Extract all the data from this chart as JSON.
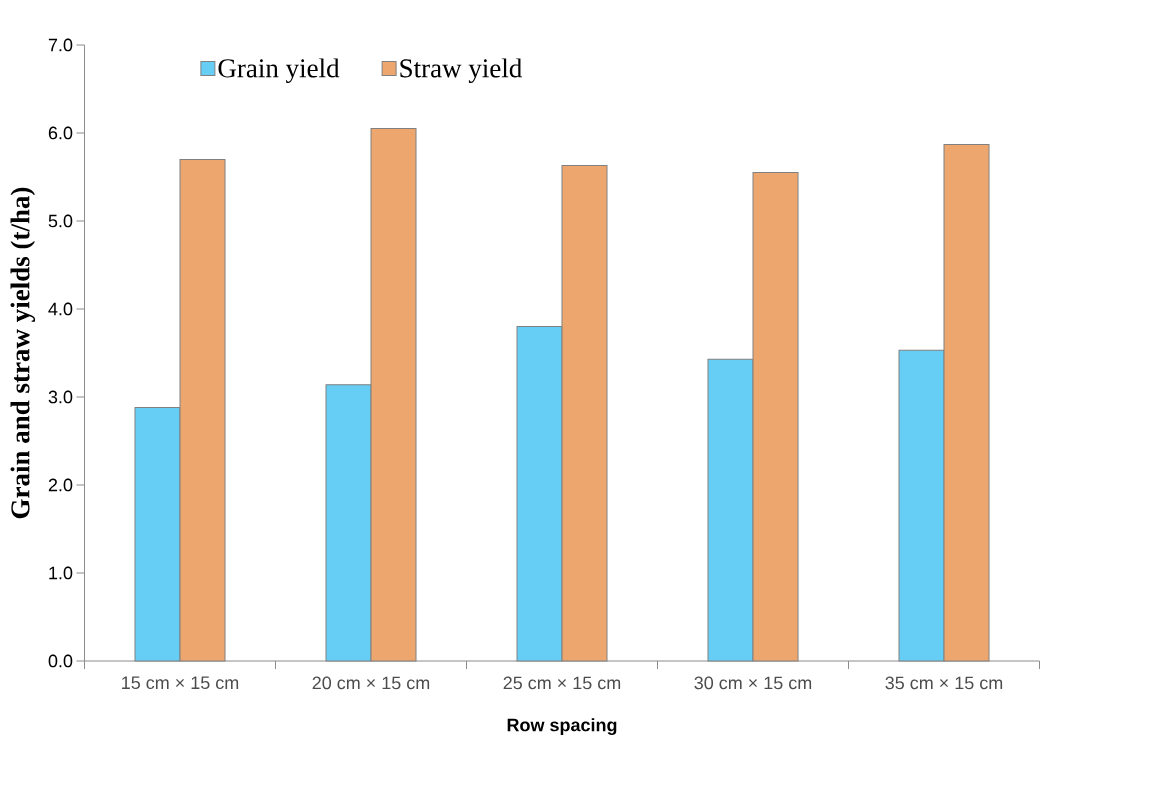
{
  "chart_data": {
    "type": "bar",
    "xlabel": "Row spacing",
    "ylabel": "Grain and straw yields (t/ha)",
    "categories": [
      "15 cm  × 15 cm",
      "20 cm  × 15 cm",
      "25 cm  × 15 cm",
      "30 cm  × 15 cm",
      "35 cm  × 15 cm"
    ],
    "series": [
      {
        "name": "Grain yield",
        "color": "#66cef5",
        "values": [
          2.88,
          3.14,
          3.8,
          3.43,
          3.53
        ]
      },
      {
        "name": "Straw yield",
        "color": "#eda66e",
        "values": [
          5.7,
          6.05,
          5.63,
          5.55,
          5.87
        ]
      }
    ],
    "ylim": [
      0,
      7
    ],
    "yticks": [
      {
        "value": 0,
        "label": "0.0"
      },
      {
        "value": 1,
        "label": "1.0"
      },
      {
        "value": 2,
        "label": "2.0"
      },
      {
        "value": 3,
        "label": "3.0"
      },
      {
        "value": 4,
        "label": "4.0"
      },
      {
        "value": 5,
        "label": "5.0"
      },
      {
        "value": 6,
        "label": "6.0"
      },
      {
        "value": 7,
        "label": "7.0"
      }
    ],
    "legend": "top left"
  }
}
